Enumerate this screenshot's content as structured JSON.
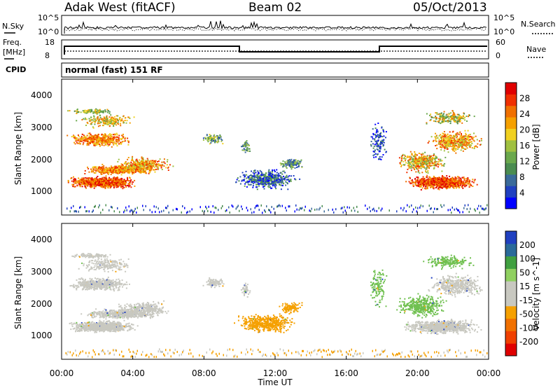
{
  "header": {
    "station": "Adak West (fitACF)",
    "beam": "Beam 02",
    "date": "05/Oct/2013"
  },
  "noise_panel": {
    "left_label": "N.Sky",
    "right_label": "N.Search",
    "left_ticks": [
      "10^5",
      "10^0"
    ],
    "right_ticks": [
      "10^5",
      "10^0"
    ]
  },
  "freq_panel": {
    "left_label_top": "Freq.",
    "left_label_bottom": "[MHz]",
    "left_ticks": [
      "18",
      "8"
    ],
    "right_label": "Nave",
    "right_ticks": [
      "60",
      "0"
    ]
  },
  "cpid_panel": {
    "label": "CPID",
    "mode_text": "normal (fast) 151 RF"
  },
  "chart_data": [
    {
      "type": "heatmap",
      "name": "power",
      "ylabel": "Slant Range [km]",
      "yticks": [
        "4000",
        "3000",
        "2000",
        "1000"
      ],
      "ylim": [
        200,
        4500
      ],
      "colorbar_label": "Power [dB]",
      "colorbar_ticks": [
        "28",
        "24",
        "20",
        "16",
        "12",
        "8",
        "4"
      ],
      "colorbar_colors": [
        "#0000ff",
        "#2040c0",
        "#3a6a9a",
        "#4a8c50",
        "#6aa84c",
        "#a0c040",
        "#f0d020",
        "#f5a000",
        "#f07000",
        "#f03000",
        "#e00000"
      ]
    },
    {
      "type": "heatmap",
      "name": "velocity",
      "ylabel": "Slant Range [km]",
      "yticks": [
        "4000",
        "3000",
        "2000",
        "1000"
      ],
      "ylim": [
        200,
        4500
      ],
      "colorbar_label": "Velocity [m s^-1]",
      "colorbar_ticks": [
        "200",
        "100",
        "50",
        "15",
        "-15",
        "-50",
        "-100",
        "-200"
      ],
      "colorbar_colors": [
        "#e00000",
        "#f04000",
        "#f07000",
        "#f5a000",
        "#c8c8c0",
        "#c8c8c0",
        "#90d060",
        "#40a040",
        "#2a6a9a",
        "#2040c0"
      ]
    }
  ],
  "x_axis": {
    "label": "Time UT",
    "ticks": [
      "00:00",
      "04:00",
      "08:00",
      "12:00",
      "16:00",
      "20:00",
      "00:00"
    ]
  }
}
